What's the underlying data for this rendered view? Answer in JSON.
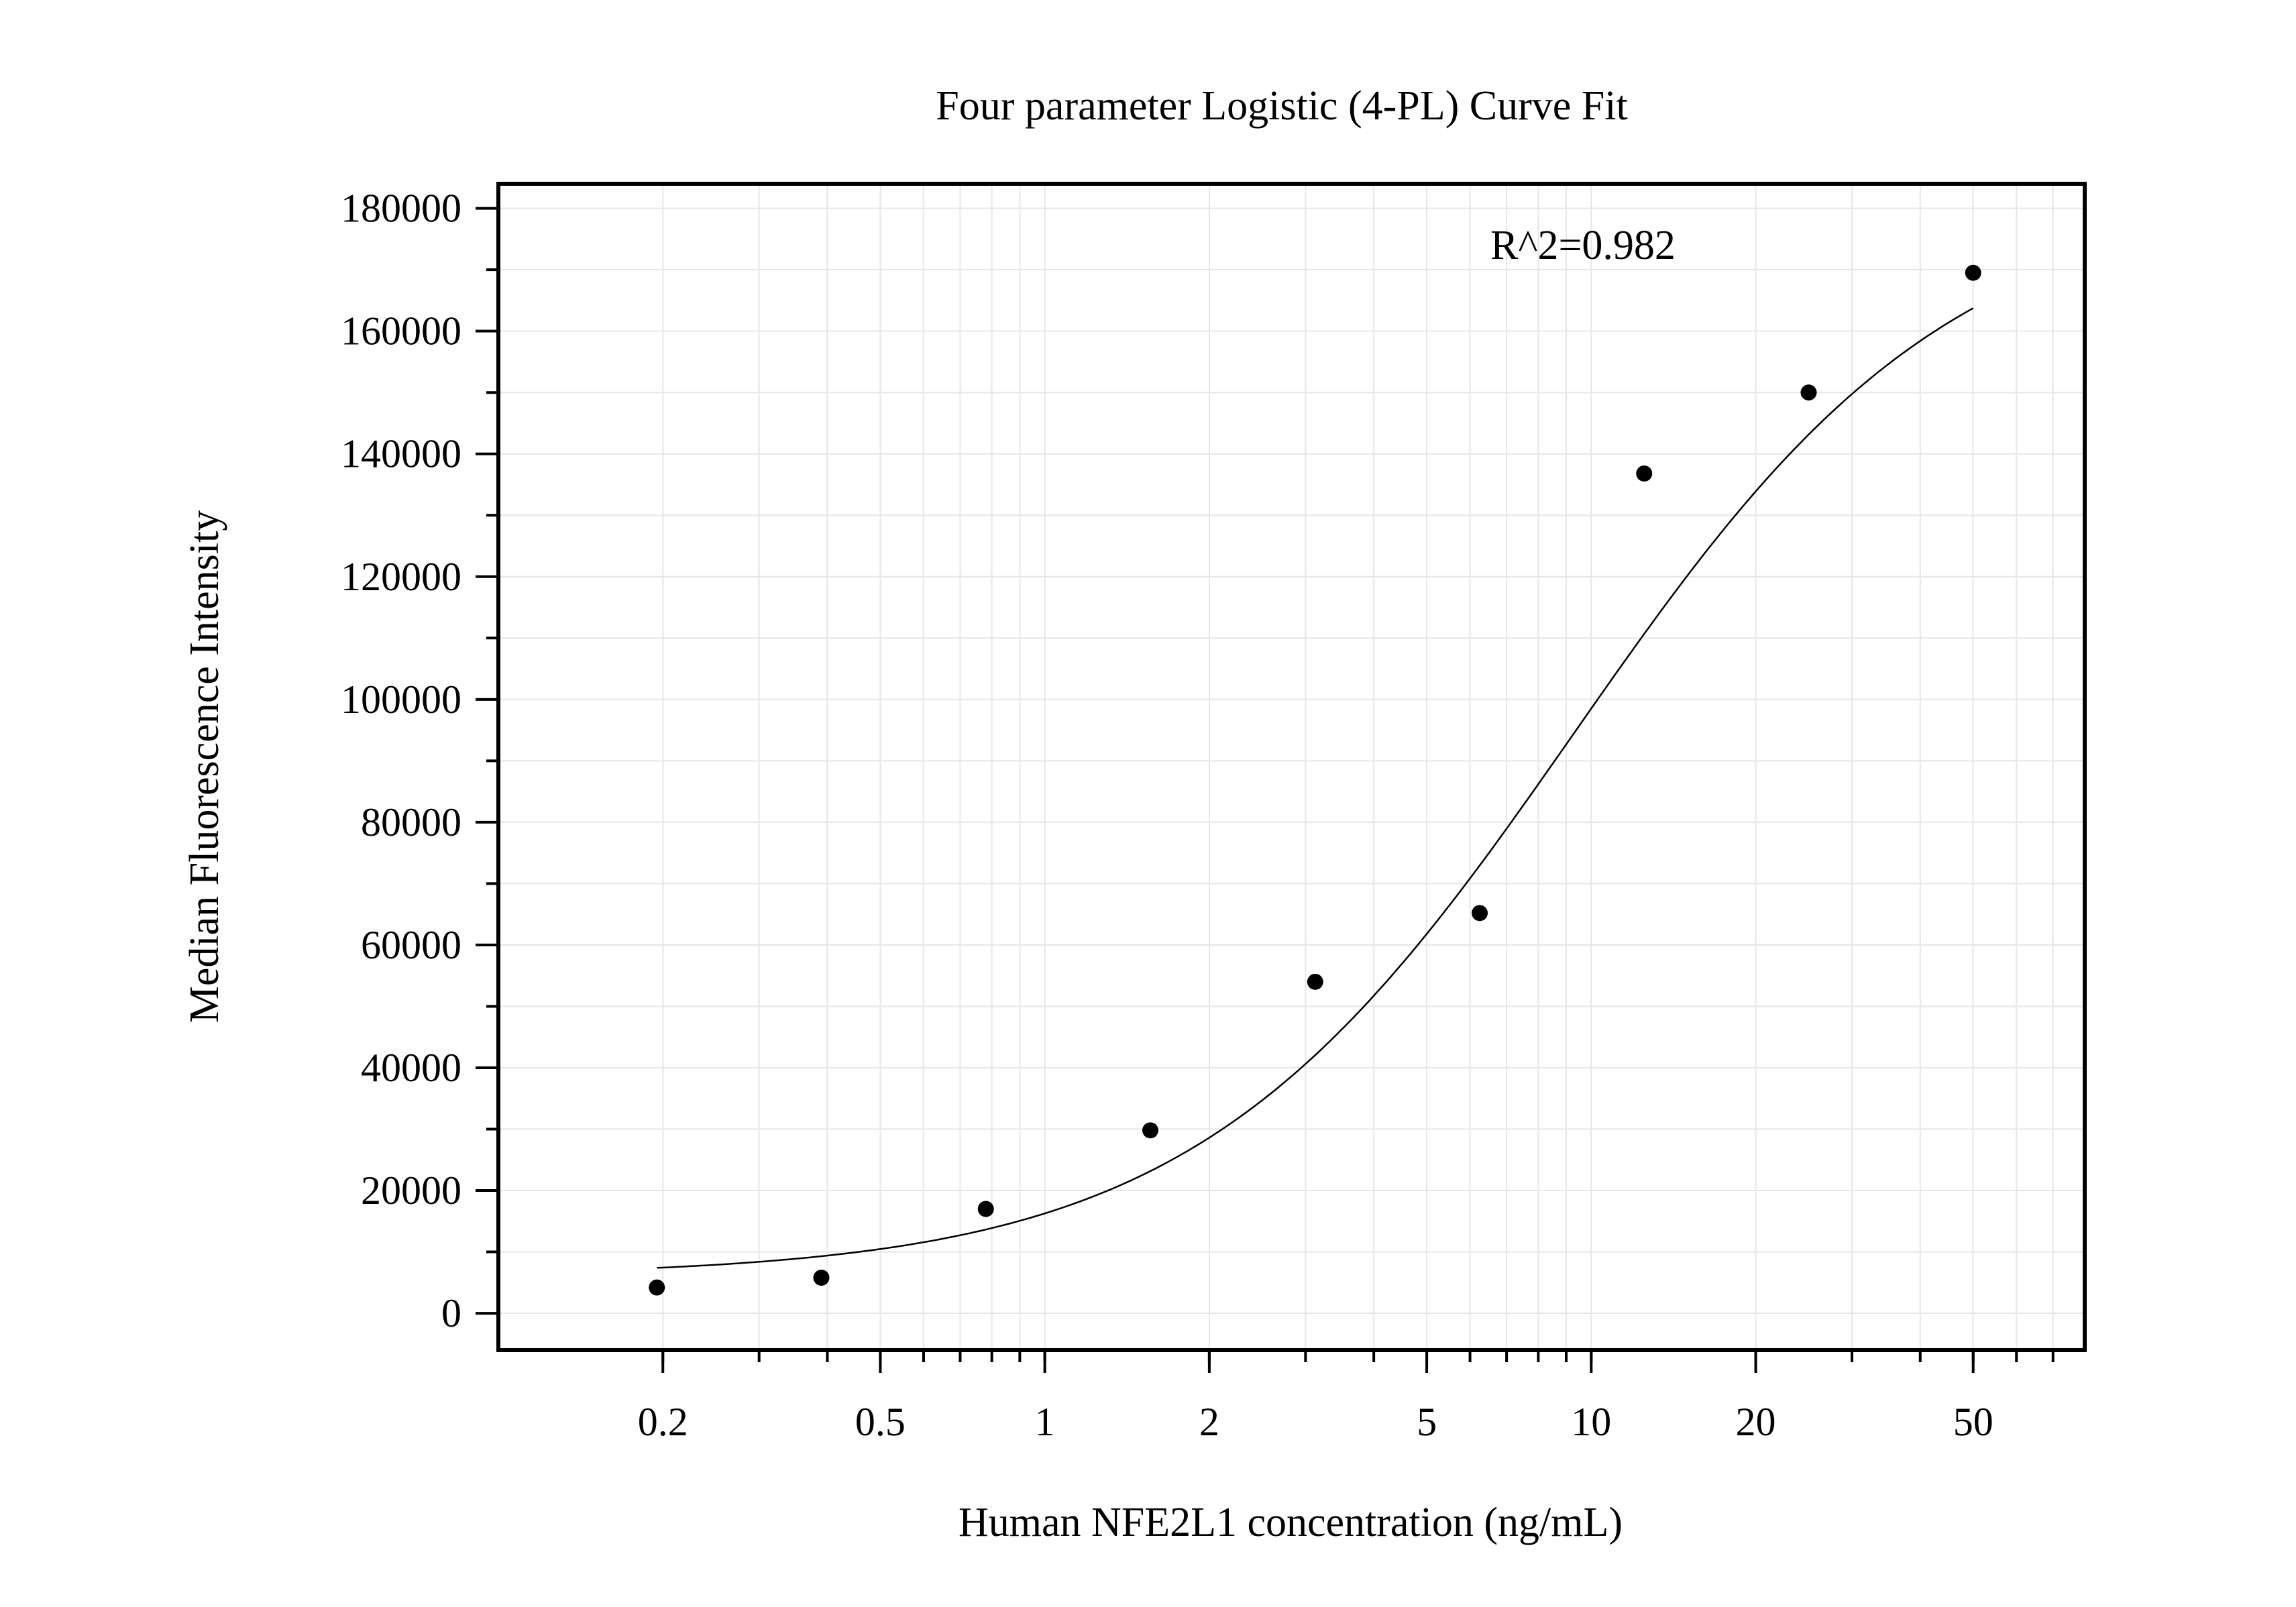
{
  "chart_data": {
    "type": "scatter",
    "title": "Four parameter Logistic (4-PL) Curve Fit",
    "xlabel": "Human NFE2L1 concentration (ng/mL)",
    "ylabel": "Median Fluorescence Intensity",
    "x_scale": "log",
    "xlim": [
      0.1,
      80
    ],
    "ylim": [
      -6000,
      184000
    ],
    "grid": true,
    "x_ticks": [
      0.2,
      0.5,
      1,
      2,
      5,
      10,
      20,
      50
    ],
    "x_tick_labels": [
      "0.2",
      "0.5",
      "1",
      "2",
      "5",
      "10",
      "20",
      "50"
    ],
    "y_ticks": [
      0,
      20000,
      40000,
      60000,
      80000,
      100000,
      120000,
      140000,
      160000,
      180000
    ],
    "y_tick_labels": [
      "0",
      "20000",
      "40000",
      "60000",
      "80000",
      "100000",
      "120000",
      "140000",
      "160000",
      "180000"
    ],
    "annotation": "R^2=0.982",
    "points": {
      "x": [
        0.195,
        0.39,
        0.78,
        1.56,
        3.125,
        6.25,
        12.5,
        25,
        50
      ],
      "y": [
        4200,
        5800,
        17000,
        29800,
        54000,
        65200,
        136800,
        150000,
        169500
      ]
    },
    "fit_curve": {
      "model": "4PL",
      "x_range": [
        0.195,
        50
      ],
      "params": {
        "bottom": 6000,
        "top": 183000,
        "ec50": 9.3,
        "hill": 1.25
      }
    },
    "colors": {
      "points": "#000000",
      "curve": "#000000",
      "grid": "#e6e6e6",
      "axes": "#000000"
    }
  }
}
